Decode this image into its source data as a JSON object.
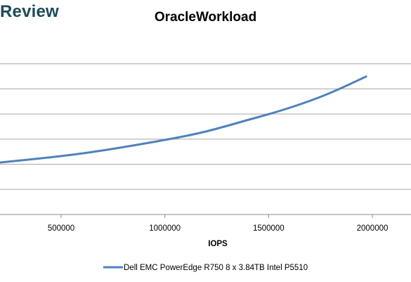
{
  "brand": {
    "text": "Review",
    "color": "#1e4b5a"
  },
  "chart_data": {
    "type": "line",
    "title": "OracleWorkload",
    "xlabel": "IOPS",
    "ylabel": "",
    "x_ticks": [
      500000,
      1000000,
      1500000,
      2000000
    ],
    "x_tick_labels": [
      "500000",
      "1000000",
      "1500000",
      "2000000"
    ],
    "xlim": [
      200000,
      2200000
    ],
    "y_grid_lines": 7,
    "grid": "horizontal",
    "legend_position": "bottom",
    "series": [
      {
        "name": "Dell EMC PowerEdge R750 8 x 3.84TB Intel P5510",
        "color": "#4f81bd",
        "points": [
          [
            200000,
            0.295
          ],
          [
            300000,
            0.307
          ],
          [
            400000,
            0.319
          ],
          [
            500000,
            0.332
          ],
          [
            600000,
            0.347
          ],
          [
            700000,
            0.364
          ],
          [
            800000,
            0.383
          ],
          [
            900000,
            0.403
          ],
          [
            1000000,
            0.424
          ],
          [
            1100000,
            0.446
          ],
          [
            1200000,
            0.472
          ],
          [
            1300000,
            0.504
          ],
          [
            1400000,
            0.538
          ],
          [
            1500000,
            0.57
          ],
          [
            1600000,
            0.606
          ],
          [
            1700000,
            0.646
          ],
          [
            1800000,
            0.692
          ],
          [
            1900000,
            0.746
          ],
          [
            1970000,
            0.785
          ]
        ]
      }
    ]
  }
}
